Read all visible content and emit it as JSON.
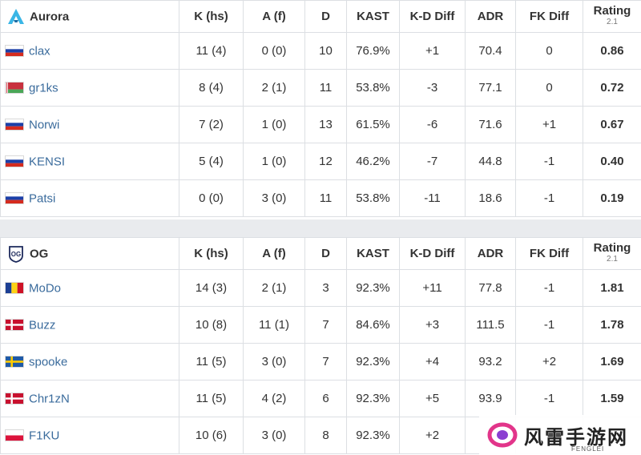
{
  "columns": [
    "K (hs)",
    "A (f)",
    "D",
    "KAST",
    "K-D Diff",
    "ADR",
    "FK Diff",
    "Rating",
    "2.1"
  ],
  "colors": {
    "positive": "#2e9a33",
    "negative": "#cc2a2a",
    "player_link": "#3a6b9c"
  },
  "teams": [
    {
      "name": "Aurora",
      "logo_icon": "aurora-logo-icon",
      "players": [
        {
          "name": "clax",
          "flag": "russia-flag-icon",
          "k": "11 (4)",
          "a": "0 (0)",
          "d": "10",
          "kast": "76.9%",
          "kd": "+1",
          "adr": "70.4",
          "fk": "0",
          "rating": "0.86"
        },
        {
          "name": "gr1ks",
          "flag": "belarus-flag-icon",
          "k": "8 (4)",
          "a": "2 (1)",
          "d": "11",
          "kast": "53.8%",
          "kd": "-3",
          "adr": "77.1",
          "fk": "0",
          "rating": "0.72"
        },
        {
          "name": "Norwi",
          "flag": "russia-flag-icon",
          "k": "7 (2)",
          "a": "1 (0)",
          "d": "13",
          "kast": "61.5%",
          "kd": "-6",
          "adr": "71.6",
          "fk": "+1",
          "rating": "0.67"
        },
        {
          "name": "KENSI",
          "flag": "russia-flag-icon",
          "k": "5 (4)",
          "a": "1 (0)",
          "d": "12",
          "kast": "46.2%",
          "kd": "-7",
          "adr": "44.8",
          "fk": "-1",
          "rating": "0.40"
        },
        {
          "name": "Patsi",
          "flag": "russia-flag-icon",
          "k": "0 (0)",
          "a": "3 (0)",
          "d": "11",
          "kast": "53.8%",
          "kd": "-11",
          "adr": "18.6",
          "fk": "-1",
          "rating": "0.19"
        }
      ]
    },
    {
      "name": "OG",
      "logo_icon": "og-logo-icon",
      "players": [
        {
          "name": "MoDo",
          "flag": "romania-flag-icon",
          "k": "14 (3)",
          "a": "2 (1)",
          "d": "3",
          "kast": "92.3%",
          "kd": "+11",
          "adr": "77.8",
          "fk": "-1",
          "rating": "1.81"
        },
        {
          "name": "Buzz",
          "flag": "denmark-flag-icon",
          "k": "10 (8)",
          "a": "11 (1)",
          "d": "7",
          "kast": "84.6%",
          "kd": "+3",
          "adr": "111.5",
          "fk": "-1",
          "rating": "1.78"
        },
        {
          "name": "spooke",
          "flag": "sweden-flag-icon",
          "k": "11 (5)",
          "a": "3 (0)",
          "d": "7",
          "kast": "92.3%",
          "kd": "+4",
          "adr": "93.2",
          "fk": "+2",
          "rating": "1.69"
        },
        {
          "name": "Chr1zN",
          "flag": "denmark-flag-icon",
          "k": "11 (5)",
          "a": "4 (2)",
          "d": "6",
          "kast": "92.3%",
          "kd": "+5",
          "adr": "93.9",
          "fk": "-1",
          "rating": "1.59"
        },
        {
          "name": "F1KU",
          "flag": "poland-flag-icon",
          "k": "10 (6)",
          "a": "3 (0)",
          "d": "8",
          "kast": "92.3%",
          "kd": "+2",
          "adr": "",
          "fk": "",
          "rating": ""
        }
      ]
    }
  ],
  "watermark": {
    "text": "风雷手游网",
    "sub": "FENGLEI"
  }
}
